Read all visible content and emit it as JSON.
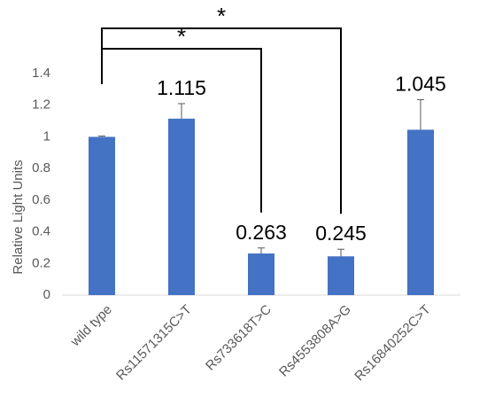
{
  "chart_data": {
    "type": "bar",
    "title": "",
    "xlabel": "",
    "ylabel": "Relative Light Units",
    "ylim": [
      0,
      1.4
    ],
    "yticks": [
      "0",
      "0.2",
      "0.4",
      "0.6",
      "0.8",
      "1",
      "1.2",
      "1.4"
    ],
    "categories": [
      "wild type",
      "Rs11571315C>T",
      "Rs733618T>C",
      "Rs4553808A>G",
      "Rs16840252C>T"
    ],
    "values": [
      1.0,
      1.115,
      0.263,
      0.245,
      1.045
    ],
    "errors": [
      0.005,
      0.095,
      0.035,
      0.045,
      0.19
    ],
    "data_labels": [
      "",
      "1.115",
      "0.263",
      "0.245",
      "1.045"
    ],
    "significance": [
      {
        "from": "wild type",
        "to": "Rs733618T>C",
        "label": "*"
      },
      {
        "from": "wild type",
        "to": "Rs4553808A>G",
        "label": "*"
      }
    ],
    "bar_color": "#4472C4",
    "grid": false,
    "legend": "none"
  }
}
